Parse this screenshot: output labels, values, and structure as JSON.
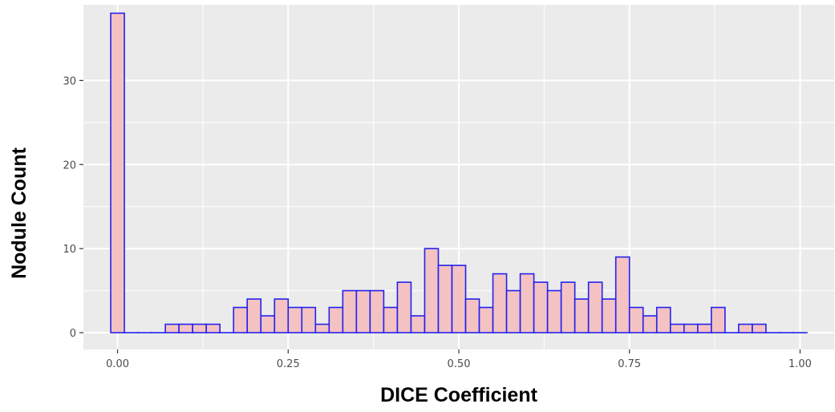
{
  "chart_data": {
    "type": "bar",
    "title": "",
    "xlabel": "DICE Coefficient",
    "ylabel": "Nodule Count",
    "xlim": [
      -0.05,
      1.05
    ],
    "ylim": [
      -2,
      39
    ],
    "x_ticks": [
      0.0,
      0.25,
      0.5,
      0.75,
      1.0
    ],
    "x_tick_labels": [
      "0.00",
      "0.25",
      "0.50",
      "0.75",
      "1.00"
    ],
    "y_ticks": [
      0,
      10,
      20,
      30
    ],
    "y_tick_labels": [
      "0",
      "10",
      "20",
      "30"
    ],
    "bin_width": 0.02,
    "x": [
      0.0,
      0.02,
      0.04,
      0.06,
      0.08,
      0.1,
      0.12,
      0.14,
      0.16,
      0.18,
      0.2,
      0.22,
      0.24,
      0.26,
      0.28,
      0.3,
      0.32,
      0.34,
      0.36,
      0.38,
      0.4,
      0.42,
      0.44,
      0.46,
      0.48,
      0.5,
      0.52,
      0.54,
      0.56,
      0.58,
      0.6,
      0.62,
      0.64,
      0.66,
      0.68,
      0.7,
      0.72,
      0.74,
      0.76,
      0.78,
      0.8,
      0.82,
      0.84,
      0.86,
      0.88,
      0.9,
      0.92,
      0.94,
      0.96,
      0.98,
      1.0
    ],
    "values": [
      38,
      0,
      0,
      0,
      1,
      1,
      1,
      1,
      0,
      3,
      4,
      2,
      4,
      3,
      3,
      1,
      3,
      5,
      5,
      5,
      3,
      6,
      2,
      10,
      8,
      8,
      4,
      3,
      7,
      5,
      7,
      6,
      5,
      6,
      4,
      6,
      4,
      9,
      3,
      2,
      3,
      1,
      1,
      1,
      3,
      0,
      1,
      1,
      0,
      0,
      0
    ],
    "grid": true,
    "legend": "none",
    "colors": {
      "panel_background": "#ebebeb",
      "gridline": "#ffffff",
      "bar_fill": "#f4c2c2",
      "bar_outline": "#2222ee"
    }
  }
}
